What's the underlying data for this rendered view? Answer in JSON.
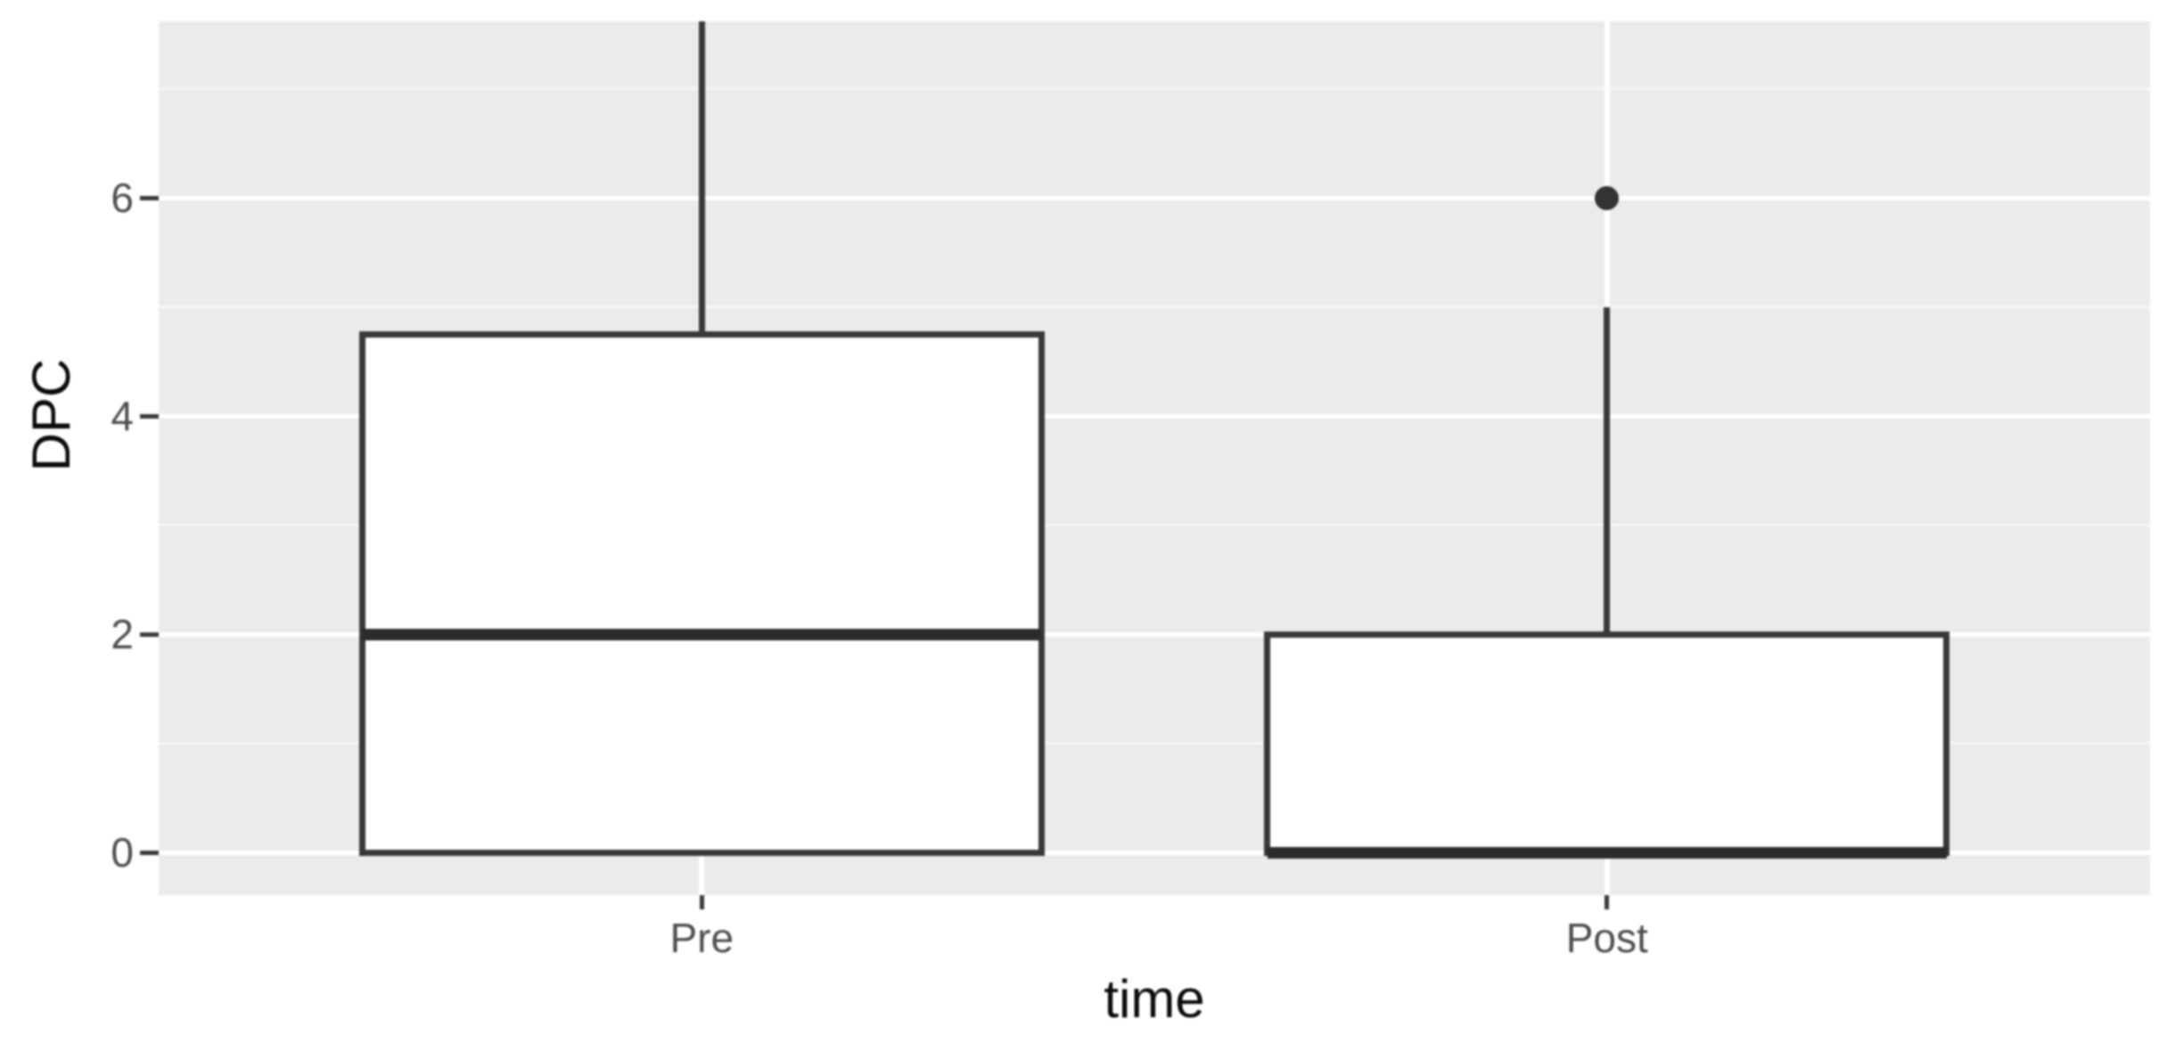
{
  "figure": {
    "background": "#ffffff",
    "panel_background": "#EBEBEB"
  },
  "chart_data": {
    "type": "boxplot",
    "title": "",
    "xlabel": "time",
    "ylabel": "DPC",
    "categories": [
      "Pre",
      "Post"
    ],
    "y_axis": {
      "tick_values": [
        0,
        2,
        4,
        6
      ],
      "tick_labels": [
        "0",
        "2",
        "4",
        "6"
      ],
      "minor_tick_values": [
        1,
        3,
        5,
        7
      ],
      "range": [
        -0.39,
        7.62
      ]
    },
    "series": [
      {
        "category": "Pre",
        "q1": 0,
        "median": 2,
        "q3": 4.75,
        "whisker_low": 0,
        "whisker_high": null,
        "whisker_high_clipped_at_panel_top": true,
        "outliers": []
      },
      {
        "category": "Post",
        "q1": 0,
        "median": 0,
        "q3": 2,
        "whisker_low": 0,
        "whisker_high": 5,
        "whisker_high_clipped_at_panel_top": false,
        "outliers": [
          6
        ]
      }
    ],
    "legend": "none",
    "grid": "horizontal major+minor, vertical major at category centers",
    "box_fill": "#FFFFFF"
  },
  "colors": {
    "panel": "#EBEBEB",
    "grid_major": "#FFFFFF",
    "grid_minor": "#F5F5F5",
    "box_stroke": "#383838",
    "median": "#2B2B2B",
    "outlier": "#333333",
    "tick_mark": "#3A3A3A",
    "tick_label": "#4E4E4E",
    "axis_title": "#0B0B0B"
  }
}
